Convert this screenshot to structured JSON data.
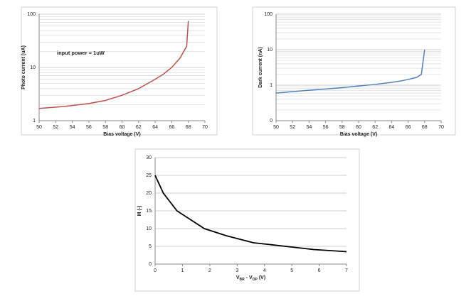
{
  "chart_data": [
    {
      "type": "line",
      "ylabel": "Photo current (uA)",
      "xlabel": [
        "Bias voltage (V)"
      ],
      "annotation": "input power = 1uW",
      "x": [
        50,
        53,
        56,
        58,
        60,
        62,
        64,
        65,
        66,
        67,
        67.8,
        68
      ],
      "values": [
        1.7,
        1.85,
        2.1,
        2.4,
        3.0,
        4.0,
        6.0,
        7.5,
        10,
        15,
        25,
        75
      ],
      "color": "#c0504d",
      "log_y": true,
      "xlim": [
        50,
        70
      ],
      "xticks": [
        50,
        52,
        54,
        56,
        58,
        60,
        62,
        64,
        66,
        68,
        70
      ],
      "ylim": [
        1,
        100
      ],
      "yticks": [
        1,
        10,
        100
      ],
      "minor_yticks": [
        2,
        3,
        4,
        5,
        6,
        7,
        8,
        9,
        20,
        30,
        40,
        50,
        60,
        70,
        80,
        90
      ],
      "grid": true
    },
    {
      "type": "line",
      "ylabel": "Dark current (nA)",
      "xlabel": [
        "Bias voltage (V)"
      ],
      "x": [
        50,
        52,
        54,
        56,
        58,
        60,
        62,
        64,
        65,
        66,
        67,
        67.6,
        68
      ],
      "values": [
        0.6,
        0.66,
        0.72,
        0.78,
        0.85,
        0.95,
        1.05,
        1.2,
        1.3,
        1.45,
        1.65,
        2.0,
        10
      ],
      "color": "#4f81bd",
      "log_y": true,
      "xlim": [
        50,
        70
      ],
      "xticks": [
        50,
        52,
        54,
        56,
        58,
        60,
        62,
        64,
        66,
        68,
        70
      ],
      "ylim": [
        0.1,
        100
      ],
      "yticks": [
        {
          "value": 0.1,
          "label": "0"
        },
        1,
        10,
        100
      ],
      "minor_yticks": [
        0.2,
        0.3,
        0.4,
        0.5,
        0.6,
        0.7,
        0.8,
        0.9,
        2,
        3,
        4,
        5,
        6,
        7,
        8,
        9,
        20,
        30,
        40,
        50,
        60,
        70,
        80,
        90
      ],
      "grid": true
    },
    {
      "type": "line",
      "ylabel": "M (-)",
      "xlabel": [
        "V",
        "BR",
        " - V",
        "OP",
        " (V)"
      ],
      "x": [
        0,
        0.3,
        0.8,
        1.3,
        1.8,
        2.2,
        2.6,
        3.1,
        3.6,
        4.2,
        5,
        5.8,
        7
      ],
      "values": [
        25,
        20,
        15,
        12.5,
        10,
        9,
        8,
        7,
        6,
        5.5,
        4.8,
        4.1,
        3.5
      ],
      "color": "#000000",
      "log_y": false,
      "xlim": [
        0,
        7
      ],
      "xticks": [
        0,
        1,
        2,
        3,
        4,
        5,
        6,
        7
      ],
      "ylim": [
        0,
        30
      ],
      "yticks": [
        0,
        5,
        10,
        15,
        20,
        25,
        30
      ],
      "grid": true
    }
  ]
}
